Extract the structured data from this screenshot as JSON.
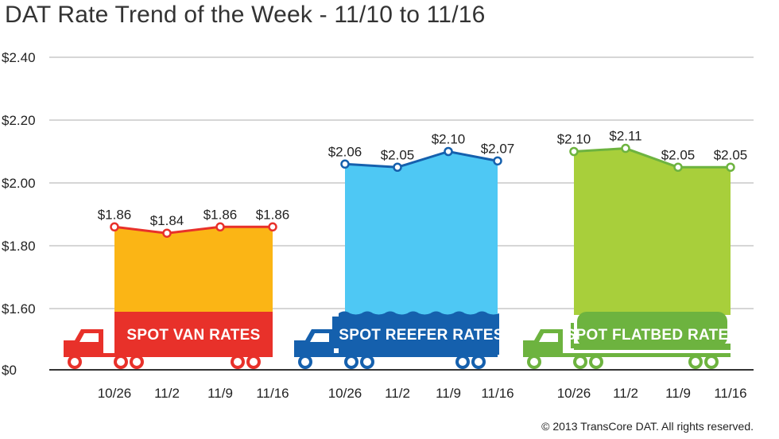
{
  "title": "DAT Rate Trend of the Week - 11/10 to 11/16",
  "copyright": "© 2013 TransCore DAT. All rights reserved.",
  "chart_data": {
    "type": "area",
    "title": "DAT Rate Trend of the Week - 11/10 to 11/16",
    "ylim": [
      0,
      2.4
    ],
    "axis_break": "between $0 and $1.60",
    "y_ticks": [
      "$0",
      "$1.60",
      "$1.80",
      "$2.00",
      "$2.20",
      "$2.40"
    ],
    "y_tick_values": [
      0,
      1.6,
      1.8,
      2.0,
      2.2,
      2.4
    ],
    "grid": true,
    "categories": [
      "10/26",
      "11/2",
      "11/9",
      "11/16"
    ],
    "series": [
      {
        "name": "SPOT VAN RATES",
        "values": [
          1.86,
          1.84,
          1.86,
          1.86
        ],
        "labels": [
          "$1.86",
          "$1.84",
          "$1.86",
          "$1.86"
        ],
        "fill": "#fbb515",
        "line": "#e8312a",
        "banner": "#e8312a"
      },
      {
        "name": "SPOT REEFER RATES",
        "values": [
          2.06,
          2.05,
          2.1,
          2.07
        ],
        "labels": [
          "$2.06",
          "$2.05",
          "$2.10",
          "$2.07"
        ],
        "fill": "#4ec8f4",
        "line": "#1560ad",
        "banner": "#1560ad"
      },
      {
        "name": "SPOT FLATBED RATES",
        "values": [
          2.1,
          2.11,
          2.05,
          2.05
        ],
        "labels": [
          "$2.10",
          "$2.11",
          "$2.05",
          "$2.05"
        ],
        "fill": "#a8cf3b",
        "line": "#6db33f",
        "banner": "#6db33f"
      }
    ]
  }
}
